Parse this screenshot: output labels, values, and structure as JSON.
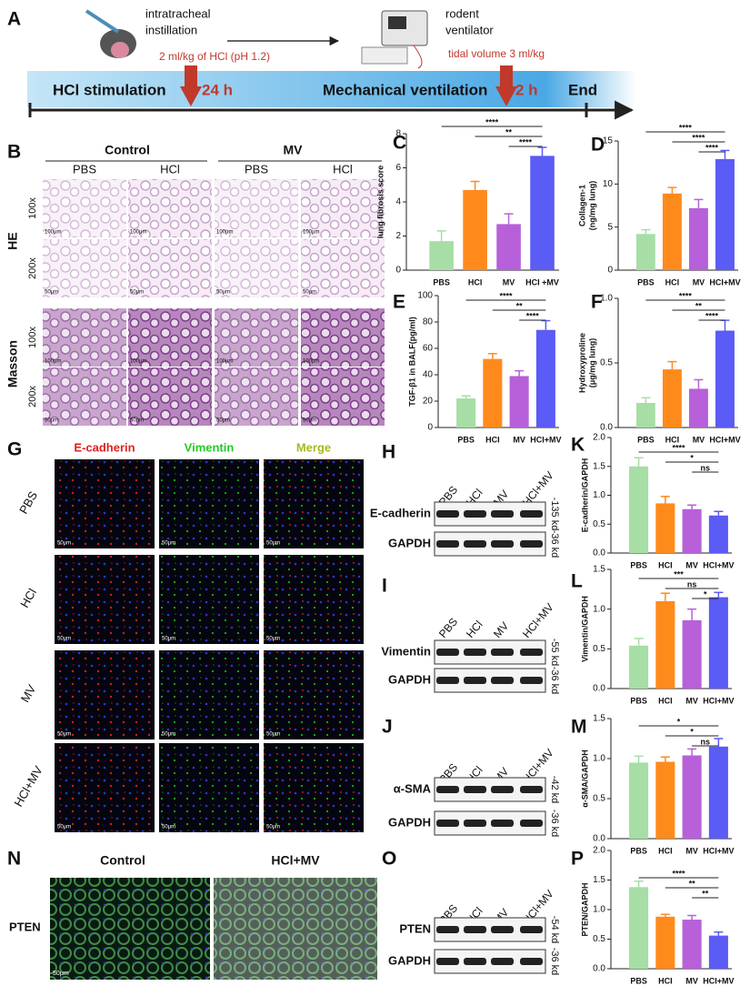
{
  "panel_a": {
    "letter": "A",
    "instillation": [
      "intratracheal",
      "instillation"
    ],
    "dose": "2 ml/kg of HCl (pH 1.2)",
    "ventilator": [
      "rodent",
      "ventilator"
    ],
    "tidal": "tidal volume 3 ml/kg",
    "stages": [
      "HCl stimulation",
      "24 h",
      "Mechanical ventilation",
      "2 h",
      "End"
    ]
  },
  "panel_b": {
    "letter": "B",
    "groups": [
      "Control",
      "MV"
    ],
    "columns": [
      "PBS",
      "HCl",
      "PBS",
      "HCl"
    ],
    "stains": [
      "HE",
      "Masson"
    ],
    "rows": [
      {
        "mag": "100x",
        "scale": "100μm"
      },
      {
        "mag": "200x",
        "scale": "50μm"
      },
      {
        "mag": "100x",
        "scale": "100μm"
      },
      {
        "mag": "200x",
        "scale": "50μm"
      }
    ]
  },
  "panel_g": {
    "letter": "G",
    "channels": [
      {
        "name": "E-cadherin",
        "color": "#e02020"
      },
      {
        "name": "Vimentin",
        "color": "#22cc22"
      },
      {
        "name": "Merge",
        "color": "#a8b820"
      }
    ],
    "rows": [
      "PBS",
      "HCl",
      "MV",
      "HCl+MV"
    ],
    "scale": "50μm"
  },
  "panel_n": {
    "letter": "N",
    "groups": [
      "Control",
      "HCl+MV"
    ],
    "marker": "PTEN",
    "scale": "50μm"
  },
  "blots": [
    {
      "letter": "H",
      "lanes": [
        "PBS",
        "HCl",
        "MV",
        "HCl+MV"
      ],
      "rows": [
        {
          "protein": "E-cadherin",
          "kd": "-135 kd"
        },
        {
          "protein": "GAPDH",
          "kd": "-36 kd"
        }
      ]
    },
    {
      "letter": "I",
      "lanes": [
        "PBS",
        "HCl",
        "MV",
        "HCl+MV"
      ],
      "rows": [
        {
          "protein": "Vimentin",
          "kd": "-55 kd"
        },
        {
          "protein": "GAPDH",
          "kd": "-36 kd"
        }
      ]
    },
    {
      "letter": "J",
      "lanes": [
        "PBS",
        "HCl",
        "MV",
        "HCl+MV"
      ],
      "rows": [
        {
          "protein": "α-SMA",
          "kd": "-42 kd"
        },
        {
          "protein": "GAPDH",
          "kd": "-36 kd"
        }
      ]
    },
    {
      "letter": "O",
      "lanes": [
        "PBS",
        "HCl",
        "MV",
        "HCl+MV"
      ],
      "rows": [
        {
          "protein": "PTEN",
          "kd": "-54 kd"
        },
        {
          "protein": "GAPDH",
          "kd": "-36 kd"
        }
      ]
    }
  ],
  "chart_data": [
    {
      "type": "bar",
      "title": "C",
      "ylabel": [
        "lung fibrosis score"
      ],
      "categories": [
        "PBS",
        "HCI",
        "MV",
        "HCI +MV"
      ],
      "values": [
        1.7,
        4.7,
        2.7,
        6.7
      ],
      "errors": [
        0.6,
        0.5,
        0.6,
        0.5
      ],
      "colors": [
        "#a6dea6",
        "#ff8a1c",
        "#b760d9",
        "#5b5bf5"
      ],
      "ylim": [
        0,
        8
      ],
      "yticks": [
        0,
        2,
        4,
        6,
        8
      ],
      "annotations": [
        {
          "label": "****",
          "from": 0,
          "to": 3
        },
        {
          "label": "**",
          "from": 1,
          "to": 3
        },
        {
          "label": "****",
          "from": 2,
          "to": 3
        }
      ]
    },
    {
      "type": "bar",
      "title": "D",
      "ylabel": [
        "Collagen-1",
        "(ng/mg lung)"
      ],
      "categories": [
        "PBS",
        "HCI",
        "MV",
        "HCI+MV"
      ],
      "values": [
        4.2,
        8.9,
        7.2,
        12.9
      ],
      "errors": [
        0.5,
        0.7,
        1.0,
        1.0
      ],
      "colors": [
        "#a6dea6",
        "#ff8a1c",
        "#b760d9",
        "#5b5bf5"
      ],
      "ylim": [
        0,
        15
      ],
      "yticks": [
        0,
        5,
        10,
        15
      ],
      "annotations": [
        {
          "label": "****",
          "from": 0,
          "to": 3
        },
        {
          "label": "****",
          "from": 1,
          "to": 3
        },
        {
          "label": "****",
          "from": 2,
          "to": 3
        }
      ]
    },
    {
      "type": "bar",
      "title": "E",
      "ylabel": [
        "TGF-β1 in BALF(pg/ml)"
      ],
      "categories": [
        "PBS",
        "HCI",
        "MV",
        "HCI+MV"
      ],
      "values": [
        22,
        52,
        39,
        74
      ],
      "errors": [
        2,
        4,
        4,
        7
      ],
      "colors": [
        "#a6dea6",
        "#ff8a1c",
        "#b760d9",
        "#5b5bf5"
      ],
      "ylim": [
        0,
        100
      ],
      "yticks": [
        0,
        20,
        40,
        60,
        80,
        100
      ],
      "annotations": [
        {
          "label": "****",
          "from": 0,
          "to": 3
        },
        {
          "label": "**",
          "from": 1,
          "to": 3
        },
        {
          "label": "****",
          "from": 2,
          "to": 3
        }
      ]
    },
    {
      "type": "bar",
      "title": "F",
      "ylabel": [
        "Hydroxyproline",
        "(μg/mg lung)"
      ],
      "categories": [
        "PBS",
        "HCI",
        "MV",
        "HCI+MV"
      ],
      "values": [
        0.19,
        0.45,
        0.3,
        0.75
      ],
      "errors": [
        0.04,
        0.06,
        0.07,
        0.08
      ],
      "colors": [
        "#a6dea6",
        "#ff8a1c",
        "#b760d9",
        "#5b5bf5"
      ],
      "ylim": [
        0,
        1
      ],
      "yticks": [
        {
          "value": 0,
          "label": "0.0"
        },
        0.5,
        {
          "value": 1,
          "label": "1.0"
        }
      ],
      "annotations": [
        {
          "label": "****",
          "from": 0,
          "to": 3
        },
        {
          "label": "**",
          "from": 1,
          "to": 3
        },
        {
          "label": "****",
          "from": 2,
          "to": 3
        }
      ]
    },
    {
      "type": "bar",
      "title": "K",
      "ylabel": [
        "E-cadherin/GAPDH"
      ],
      "categories": [
        "PBS",
        "HCI",
        "MV",
        "HCI+MV"
      ],
      "values": [
        1.5,
        0.86,
        0.76,
        0.65
      ],
      "errors": [
        0.15,
        0.12,
        0.07,
        0.07
      ],
      "colors": [
        "#a6dea6",
        "#ff8a1c",
        "#b760d9",
        "#5b5bf5"
      ],
      "ylim": [
        0,
        2
      ],
      "yticks": [
        {
          "value": 0,
          "label": "0.0"
        },
        0.5,
        {
          "value": 1,
          "label": "1.0"
        },
        1.5,
        {
          "value": 2,
          "label": "2.0"
        }
      ],
      "annotations": [
        {
          "label": "****",
          "from": 0,
          "to": 3
        },
        {
          "label": "*",
          "from": 1,
          "to": 3
        },
        {
          "label": "ns",
          "from": 2,
          "to": 3
        }
      ]
    },
    {
      "type": "bar",
      "title": "L",
      "ylabel": [
        "Vimentin/GAPDH"
      ],
      "categories": [
        "PBS",
        "HCI",
        "MV",
        "HCI+MV"
      ],
      "values": [
        0.54,
        1.1,
        0.86,
        1.15
      ],
      "errors": [
        0.09,
        0.1,
        0.14,
        0.06
      ],
      "colors": [
        "#a6dea6",
        "#ff8a1c",
        "#b760d9",
        "#5b5bf5"
      ],
      "ylim": [
        0,
        1.5
      ],
      "yticks": [
        {
          "value": 0,
          "label": "0.0"
        },
        0.5,
        {
          "value": 1,
          "label": "1.0"
        },
        1.5
      ],
      "annotations": [
        {
          "label": "***",
          "from": 0,
          "to": 3
        },
        {
          "label": "ns",
          "from": 1,
          "to": 3
        },
        {
          "label": "*",
          "from": 2,
          "to": 3
        }
      ]
    },
    {
      "type": "bar",
      "title": "M",
      "ylabel": [
        "α-SMA/GAPDH"
      ],
      "categories": [
        "PBS",
        "HCI",
        "MV",
        "HCI+MV"
      ],
      "values": [
        0.95,
        0.96,
        1.04,
        1.15
      ],
      "errors": [
        0.08,
        0.06,
        0.08,
        0.1
      ],
      "colors": [
        "#a6dea6",
        "#ff8a1c",
        "#b760d9",
        "#5b5bf5"
      ],
      "ylim": [
        0,
        1.5
      ],
      "yticks": [
        {
          "value": 0,
          "label": "0.0"
        },
        0.5,
        {
          "value": 1,
          "label": "1.0"
        },
        1.5
      ],
      "annotations": [
        {
          "label": "*",
          "from": 0,
          "to": 3
        },
        {
          "label": "*",
          "from": 1,
          "to": 3
        },
        {
          "label": "ns",
          "from": 2,
          "to": 3
        }
      ]
    },
    {
      "type": "bar",
      "title": "P",
      "ylabel": [
        "PTEN/GAPDH"
      ],
      "categories": [
        "PBS",
        "HCI",
        "MV",
        "HCI+MV"
      ],
      "values": [
        1.38,
        0.88,
        0.83,
        0.56
      ],
      "errors": [
        0.1,
        0.04,
        0.07,
        0.06
      ],
      "colors": [
        "#a6dea6",
        "#ff8a1c",
        "#b760d9",
        "#5b5bf5"
      ],
      "ylim": [
        0,
        2
      ],
      "yticks": [
        {
          "value": 0,
          "label": "0.0"
        },
        0.5,
        {
          "value": 1,
          "label": "1.0"
        },
        1.5,
        {
          "value": 2,
          "label": "2.0"
        }
      ],
      "annotations": [
        {
          "label": "****",
          "from": 0,
          "to": 3
        },
        {
          "label": "**",
          "from": 1,
          "to": 3
        },
        {
          "label": "**",
          "from": 2,
          "to": 3
        }
      ]
    }
  ]
}
